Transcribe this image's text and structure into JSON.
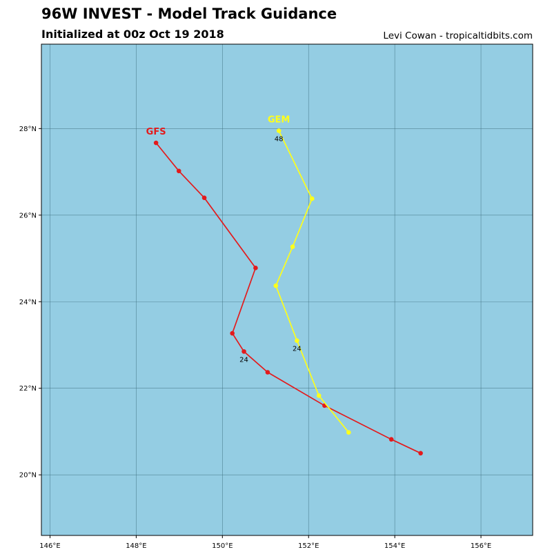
{
  "header": {
    "title": "96W INVEST - Model Track Guidance",
    "subtitle": "Initialized at 00z Oct 19 2018",
    "credit": "Levi Cowan - tropicaltidbits.com"
  },
  "colors": {
    "ocean": "#94cde3",
    "grid": "#3e6f80",
    "frame": "#000000"
  },
  "chart_data": {
    "type": "map-track",
    "xlim": [
      145.8,
      157.2
    ],
    "ylim": [
      18.6,
      29.95
    ],
    "xticks": [
      {
        "value": 146,
        "label": "146°E"
      },
      {
        "value": 148,
        "label": "148°E"
      },
      {
        "value": 150,
        "label": "150°E"
      },
      {
        "value": 152,
        "label": "152°E"
      },
      {
        "value": 154,
        "label": "154°E"
      },
      {
        "value": 156,
        "label": "156°E"
      }
    ],
    "yticks": [
      {
        "value": 20,
        "label": "20°N"
      },
      {
        "value": 22,
        "label": "22°N"
      },
      {
        "value": 24,
        "label": "24°N"
      },
      {
        "value": 26,
        "label": "26°N"
      },
      {
        "value": 28,
        "label": "28°N"
      }
    ],
    "grid": true,
    "series": [
      {
        "name": "GFS",
        "color": "#e31a1c",
        "points": [
          {
            "lon": 154.6,
            "lat": 20.5
          },
          {
            "lon": 153.92,
            "lat": 20.82
          },
          {
            "lon": 152.37,
            "lat": 21.6
          },
          {
            "lon": 151.05,
            "lat": 22.37
          },
          {
            "lon": 150.5,
            "lat": 22.85
          },
          {
            "lon": 150.23,
            "lat": 23.27
          },
          {
            "lon": 150.77,
            "lat": 24.78
          },
          {
            "lon": 149.58,
            "lat": 26.4
          },
          {
            "lon": 148.99,
            "lat": 27.02
          },
          {
            "lon": 148.46,
            "lat": 27.67
          }
        ],
        "hour_labels": [
          {
            "text": "24",
            "point_index": 4
          }
        ]
      },
      {
        "name": "GEM",
        "color": "#ffff1a",
        "points": [
          {
            "lon": 152.93,
            "lat": 20.98
          },
          {
            "lon": 152.24,
            "lat": 21.83
          },
          {
            "lon": 151.73,
            "lat": 23.1
          },
          {
            "lon": 151.24,
            "lat": 24.37
          },
          {
            "lon": 151.63,
            "lat": 25.27
          },
          {
            "lon": 152.08,
            "lat": 26.38
          },
          {
            "lon": 151.31,
            "lat": 27.95
          }
        ],
        "hour_labels": [
          {
            "text": "24",
            "point_index": 2
          },
          {
            "text": "48",
            "point_index": 6
          }
        ]
      }
    ]
  }
}
